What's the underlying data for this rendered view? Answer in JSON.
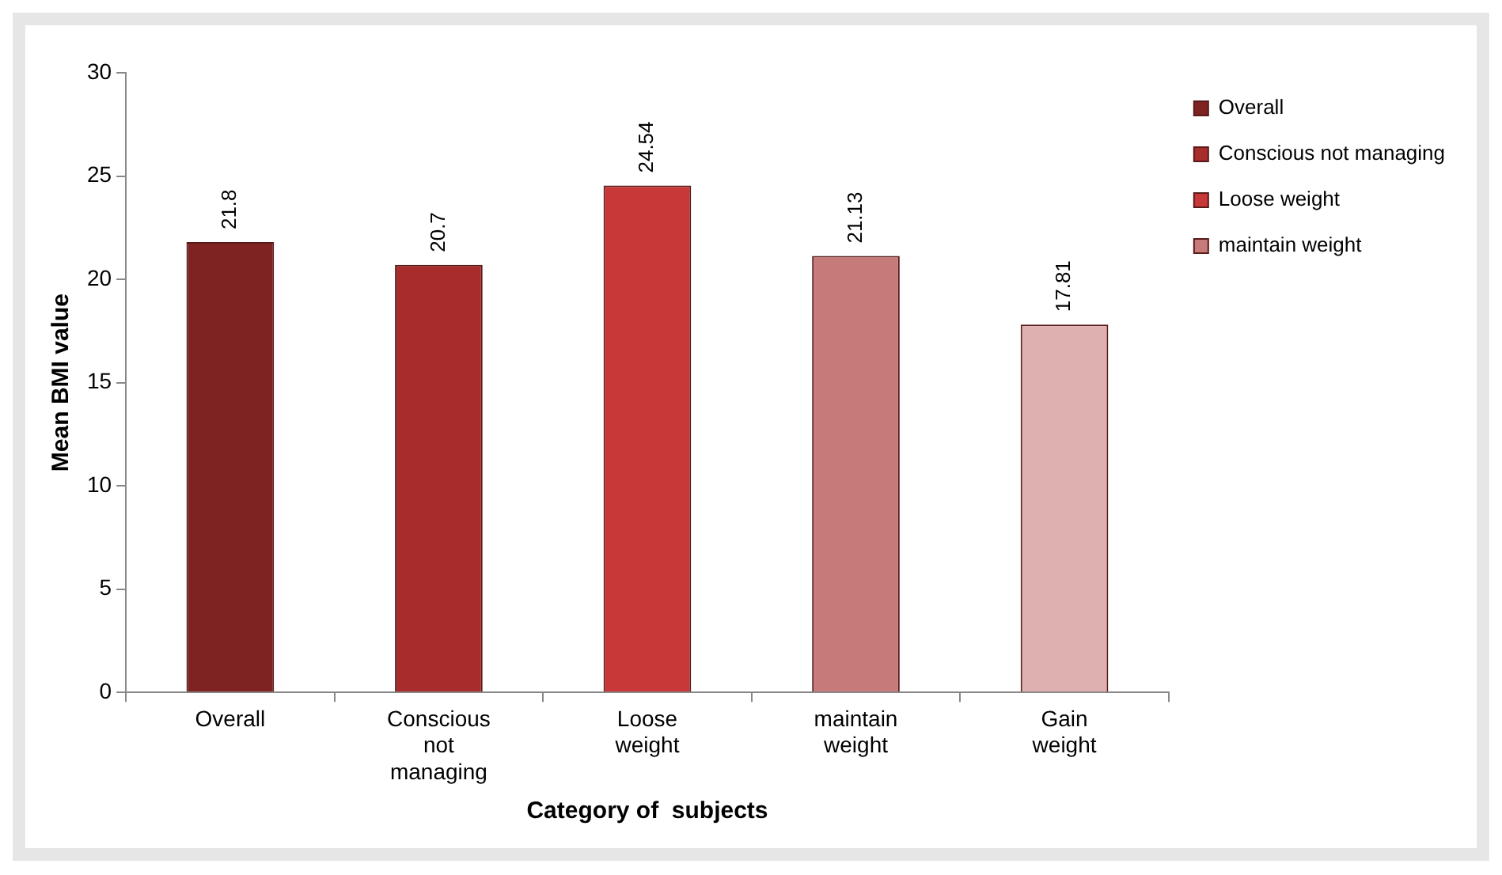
{
  "chart_data": {
    "type": "bar",
    "xlabel": "Category of  subjects",
    "ylabel": "Mean BMI value",
    "categories": [
      "Overall",
      "Conscious not managing",
      "Loose weight",
      "maintain weight",
      "Gain weight"
    ],
    "series": [
      {
        "name": "Overall",
        "color": "#7f2222",
        "values": [
          21.8,
          null,
          null,
          null,
          null
        ]
      },
      {
        "name": "Conscious not managing",
        "color": "#a82c2c",
        "values": [
          null,
          20.7,
          null,
          null,
          null
        ]
      },
      {
        "name": "Loose weight",
        "color": "#c93838",
        "values": [
          null,
          null,
          24.54,
          null,
          null
        ]
      },
      {
        "name": "maintain weight",
        "color": "#c77a7a",
        "values": [
          null,
          null,
          null,
          21.13,
          null
        ]
      },
      {
        "color": "#dfb0b0",
        "values": [
          null,
          null,
          null,
          null,
          17.81
        ]
      }
    ],
    "ylim": [
      0,
      30
    ],
    "yticks": [
      0,
      5,
      10,
      15,
      20,
      25,
      30
    ],
    "grid": false,
    "legend": "top right",
    "data_labels": true
  }
}
